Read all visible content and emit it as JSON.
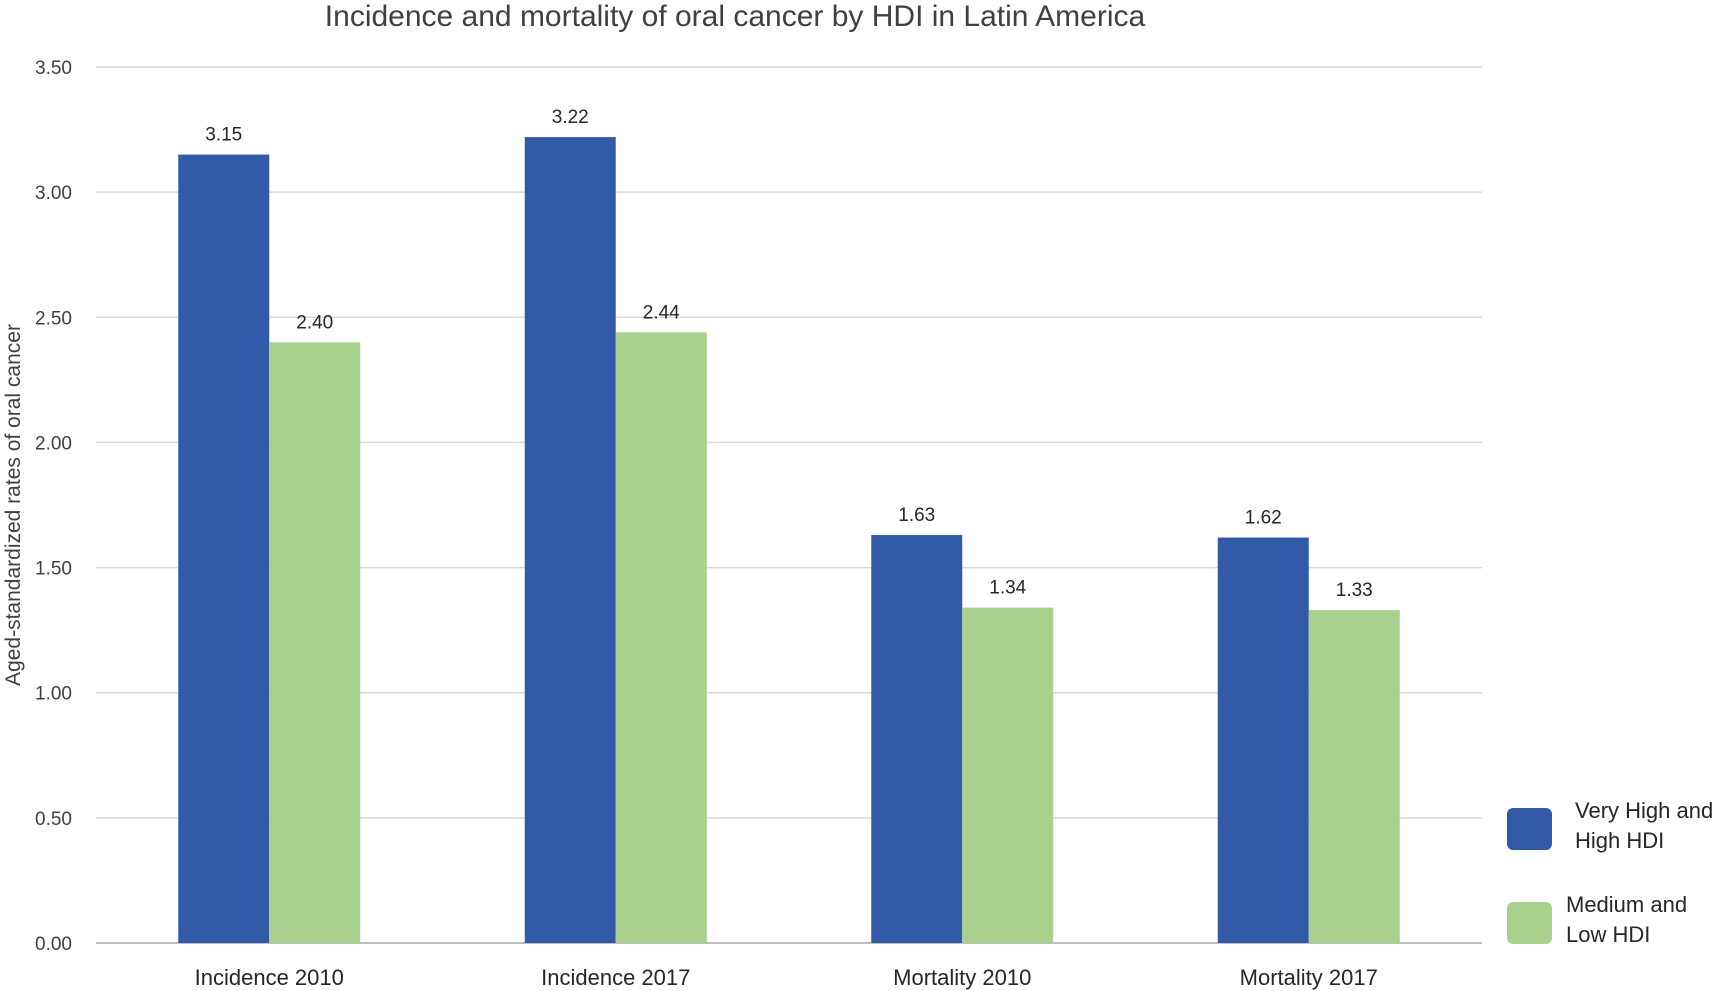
{
  "chart_data": {
    "type": "bar",
    "title": "Incidence and mortality of oral cancer by HDI in Latin America",
    "ylabel": "Aged-standardized rates of oral cancer",
    "xlabel": "",
    "ylim": [
      0,
      3.5
    ],
    "yticks": [
      "0.00",
      "0.50",
      "1.00",
      "1.50",
      "2.00",
      "2.50",
      "3.00",
      "3.50"
    ],
    "categories": [
      "Incidence 2010",
      "Incidence 2017",
      "Mortality 2010",
      "Mortality 2017"
    ],
    "series": [
      {
        "name": "Very High and High HDI",
        "legend_lines": [
          "Very High and",
          "High HDI"
        ],
        "color": "#325aa8",
        "values": [
          3.15,
          3.22,
          1.63,
          1.62
        ],
        "labels": [
          "3.15",
          "3.22",
          "1.63",
          "1.62"
        ]
      },
      {
        "name": "Medium and Low HDI",
        "legend_lines": [
          "Medium and",
          "Low HDI"
        ],
        "color": "#a9d18e",
        "values": [
          2.4,
          2.44,
          1.34,
          1.33
        ],
        "labels": [
          "2.40",
          "2.44",
          "1.34",
          "1.33"
        ]
      }
    ],
    "grid": true,
    "legend_position": "right"
  }
}
